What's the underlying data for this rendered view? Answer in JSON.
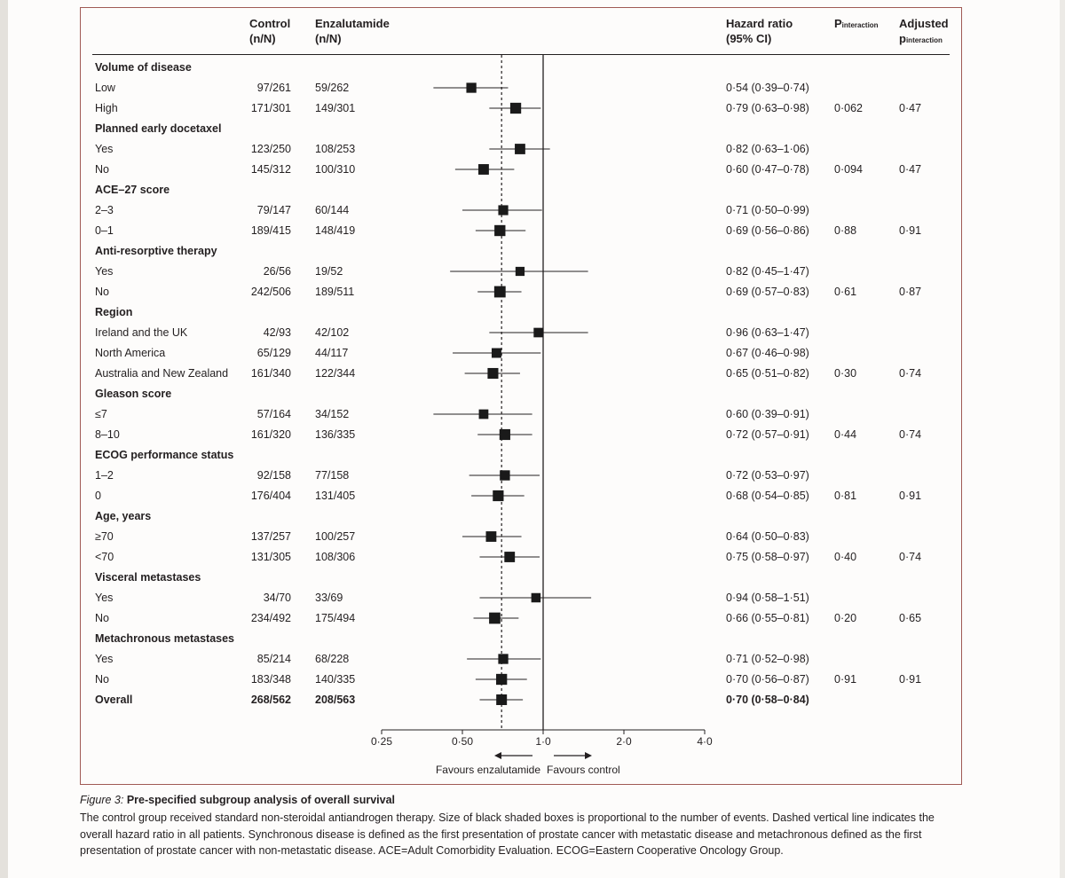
{
  "headers": {
    "control_line1": "Control",
    "control_line2": "(n/N)",
    "enz_line1": "Enzalutamide",
    "enz_line2": "(n/N)",
    "hr_line1": "Hazard ratio",
    "hr_line2": "(95% CI)",
    "pint_main": "P",
    "pint_sub": "interaction",
    "adj_line1": "Adjusted",
    "adj_main": "p",
    "adj_sub": "interaction"
  },
  "chart_data": {
    "type": "forest",
    "x_scale": "log",
    "xlim": [
      0.25,
      4.0
    ],
    "x_ticks": [
      0.25,
      0.5,
      1.0,
      2.0,
      4.0
    ],
    "x_tick_labels": [
      "0·25",
      "0·50",
      "1·0",
      "2·0",
      "4·0"
    ],
    "reference_line": 1.0,
    "overall_dashed_line": 0.7,
    "favours_left": "Favours enzalutamide",
    "favours_right": "Favours control",
    "rows": [
      {
        "type": "group",
        "label": "Volume of disease"
      },
      {
        "type": "data",
        "label": "Low",
        "control": "97/261",
        "enz": "59/262",
        "hr": 0.54,
        "lo": 0.39,
        "hi": 0.74,
        "hr_text": "0·54 (0·39–0·74)",
        "p": "",
        "adj": ""
      },
      {
        "type": "data",
        "label": "High",
        "control": "171/301",
        "enz": "149/301",
        "hr": 0.79,
        "lo": 0.63,
        "hi": 0.98,
        "hr_text": "0·79 (0·63–0·98)",
        "p": "0·062",
        "adj": "0·47"
      },
      {
        "type": "group",
        "label": "Planned early docetaxel"
      },
      {
        "type": "data",
        "label": "Yes",
        "control": "123/250",
        "enz": "108/253",
        "hr": 0.82,
        "lo": 0.63,
        "hi": 1.06,
        "hr_text": "0·82 (0·63–1·06)",
        "p": "",
        "adj": ""
      },
      {
        "type": "data",
        "label": "No",
        "control": "145/312",
        "enz": "100/310",
        "hr": 0.6,
        "lo": 0.47,
        "hi": 0.78,
        "hr_text": "0·60 (0·47–0·78)",
        "p": "0·094",
        "adj": "0·47"
      },
      {
        "type": "group",
        "label": "ACE–27 score"
      },
      {
        "type": "data",
        "label": "2–3",
        "control": "79/147",
        "enz": "60/144",
        "hr": 0.71,
        "lo": 0.5,
        "hi": 0.99,
        "hr_text": "0·71 (0·50–0·99)",
        "p": "",
        "adj": ""
      },
      {
        "type": "data",
        "label": "0–1",
        "control": "189/415",
        "enz": "148/419",
        "hr": 0.69,
        "lo": 0.56,
        "hi": 0.86,
        "hr_text": "0·69 (0·56–0·86)",
        "p": "0·88",
        "adj": "0·91"
      },
      {
        "type": "group",
        "label": "Anti-resorptive therapy"
      },
      {
        "type": "data",
        "label": "Yes",
        "control": "26/56",
        "enz": "19/52",
        "hr": 0.82,
        "lo": 0.45,
        "hi": 1.47,
        "hr_text": "0·82 (0·45–1·47)",
        "p": "",
        "adj": ""
      },
      {
        "type": "data",
        "label": "No",
        "control": "242/506",
        "enz": "189/511",
        "hr": 0.69,
        "lo": 0.57,
        "hi": 0.83,
        "hr_text": "0·69 (0·57–0·83)",
        "p": "0·61",
        "adj": "0·87"
      },
      {
        "type": "group",
        "label": "Region"
      },
      {
        "type": "data",
        "label": "Ireland and the UK",
        "control": "42/93",
        "enz": "42/102",
        "hr": 0.96,
        "lo": 0.63,
        "hi": 1.47,
        "hr_text": "0·96 (0·63–1·47)",
        "p": "",
        "adj": ""
      },
      {
        "type": "data",
        "label": "North America",
        "control": "65/129",
        "enz": "44/117",
        "hr": 0.67,
        "lo": 0.46,
        "hi": 0.98,
        "hr_text": "0·67 (0·46–0·98)",
        "p": "",
        "adj": ""
      },
      {
        "type": "data",
        "label": "Australia and New Zealand",
        "control": "161/340",
        "enz": "122/344",
        "hr": 0.65,
        "lo": 0.51,
        "hi": 0.82,
        "hr_text": "0·65 (0·51–0·82)",
        "p": "0·30",
        "adj": "0·74"
      },
      {
        "type": "group",
        "label": "Gleason score"
      },
      {
        "type": "data",
        "label": "≤7",
        "control": "57/164",
        "enz": "34/152",
        "hr": 0.6,
        "lo": 0.39,
        "hi": 0.91,
        "hr_text": "0·60 (0·39–0·91)",
        "p": "",
        "adj": ""
      },
      {
        "type": "data",
        "label": "8–10",
        "control": "161/320",
        "enz": "136/335",
        "hr": 0.72,
        "lo": 0.57,
        "hi": 0.91,
        "hr_text": "0·72 (0·57–0·91)",
        "p": "0·44",
        "adj": "0·74"
      },
      {
        "type": "group",
        "label": "ECOG performance status"
      },
      {
        "type": "data",
        "label": "1–2",
        "control": "92/158",
        "enz": "77/158",
        "hr": 0.72,
        "lo": 0.53,
        "hi": 0.97,
        "hr_text": "0·72 (0·53–0·97)",
        "p": "",
        "adj": ""
      },
      {
        "type": "data",
        "label": "0",
        "control": "176/404",
        "enz": "131/405",
        "hr": 0.68,
        "lo": 0.54,
        "hi": 0.85,
        "hr_text": "0·68 (0·54–0·85)",
        "p": "0·81",
        "adj": "0·91"
      },
      {
        "type": "group",
        "label": "Age, years"
      },
      {
        "type": "data",
        "label": "≥70",
        "control": "137/257",
        "enz": "100/257",
        "hr": 0.64,
        "lo": 0.5,
        "hi": 0.83,
        "hr_text": "0·64 (0·50–0·83)",
        "p": "",
        "adj": ""
      },
      {
        "type": "data",
        "label": "<70",
        "control": "131/305",
        "enz": "108/306",
        "hr": 0.75,
        "lo": 0.58,
        "hi": 0.97,
        "hr_text": "0·75 (0·58–0·97)",
        "p": "0·40",
        "adj": "0·74"
      },
      {
        "type": "group",
        "label": "Visceral metastases"
      },
      {
        "type": "data",
        "label": "Yes",
        "control": "34/70",
        "enz": "33/69",
        "hr": 0.94,
        "lo": 0.58,
        "hi": 1.51,
        "hr_text": "0·94 (0·58–1·51)",
        "p": "",
        "adj": ""
      },
      {
        "type": "data",
        "label": "No",
        "control": "234/492",
        "enz": "175/494",
        "hr": 0.66,
        "lo": 0.55,
        "hi": 0.81,
        "hr_text": "0·66 (0·55–0·81)",
        "p": "0·20",
        "adj": "0·65"
      },
      {
        "type": "group",
        "label": "Metachronous metastases"
      },
      {
        "type": "data",
        "label": "Yes",
        "control": "85/214",
        "enz": "68/228",
        "hr": 0.71,
        "lo": 0.52,
        "hi": 0.98,
        "hr_text": "0·71 (0·52–0·98)",
        "p": "",
        "adj": ""
      },
      {
        "type": "data",
        "label": "No",
        "control": "183/348",
        "enz": "140/335",
        "hr": 0.7,
        "lo": 0.56,
        "hi": 0.87,
        "hr_text": "0·70 (0·56–0·87)",
        "p": "0·91",
        "adj": "0·91"
      },
      {
        "type": "overall",
        "label": "Overall",
        "control": "268/562",
        "enz": "208/563",
        "hr": 0.7,
        "lo": 0.58,
        "hi": 0.84,
        "hr_text": "0·70 (0·58–0·84)",
        "p": "",
        "adj": ""
      }
    ]
  },
  "caption": {
    "figure_label": "Figure 3:",
    "title": " Pre-specified subgroup analysis of overall survival",
    "text": "The control group received standard non-steroidal antiandrogen therapy. Size of black shaded boxes is proportional to the number of events. Dashed vertical line indicates the overall hazard ratio in all patients. Synchronous disease is defined as the first presentation of prostate cancer with metastatic disease and metachronous defined as the first presentation of prostate cancer with non-metastatic disease. ACE=Adult Comorbidity Evaluation. ECOG=Eastern Cooperative Oncology Group."
  }
}
